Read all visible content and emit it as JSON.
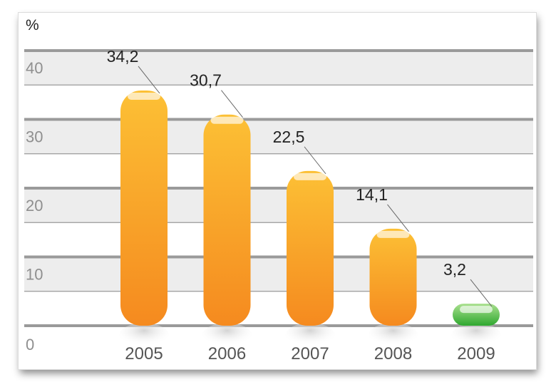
{
  "chart_data": {
    "type": "bar",
    "unit": "%",
    "categories": [
      "2005",
      "2006",
      "2007",
      "2008",
      "2009"
    ],
    "values": [
      34.2,
      30.7,
      22.5,
      14.1,
      3.2
    ],
    "value_labels": [
      "34,2",
      "30,7",
      "22,5",
      "14,1",
      "3,2"
    ],
    "yticks": [
      "0",
      "10",
      "20",
      "30",
      "40"
    ],
    "ylim": [
      0,
      40
    ],
    "grid": true,
    "colors": {
      "bar_top": "#fcc035",
      "bar_bottom": "#f58a1f",
      "highlight_top": "#a9e08e",
      "highlight_bottom": "#2fa82f",
      "band": "#ededed",
      "gridline": "#9a9a9a"
    },
    "highlight_index": 4
  }
}
